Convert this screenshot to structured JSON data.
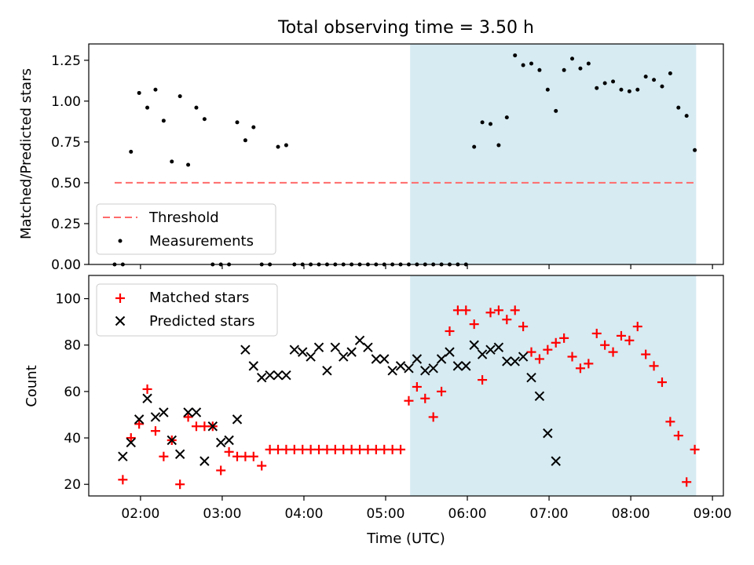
{
  "figure": {
    "title": "Total observing time = 3.50 h",
    "xlabel": "Time (UTC)"
  },
  "colors": {
    "shade": "#add8e6",
    "threshold": "#ff6b6b",
    "matched": "#ff0000",
    "predicted": "#000000",
    "measurement": "#000000"
  },
  "chart_data": [
    {
      "type": "scatter",
      "ylabel": "Matched/Predicted stars",
      "ylim": [
        0,
        1.35
      ],
      "yticks": [
        0.0,
        0.25,
        0.5,
        0.75,
        1.0,
        1.25
      ],
      "ytick_labels": [
        "0.00",
        "0.25",
        "0.50",
        "0.75",
        "1.00",
        "1.25"
      ],
      "xlim": [
        "01:22",
        "09:08"
      ],
      "xticks": [
        "02:00",
        "03:00",
        "04:00",
        "05:00",
        "06:00",
        "07:00",
        "08:00",
        "09:00"
      ],
      "xtick_labels_shown": false,
      "shaded_span": [
        "05:18",
        "08:48"
      ],
      "legend_position": "lower-left",
      "threshold": {
        "name": "Threshold",
        "value": 0.5,
        "x_range": [
          "01:41",
          "08:48"
        ]
      },
      "series": [
        {
          "name": "Measurements",
          "x": [
            "01:41",
            "01:47",
            "01:53",
            "01:59",
            "02:05",
            "02:11",
            "02:17",
            "02:23",
            "02:29",
            "02:35",
            "02:41",
            "02:47",
            "02:53",
            "02:59",
            "03:05",
            "03:11",
            "03:17",
            "03:23",
            "03:29",
            "03:35",
            "03:41",
            "03:47",
            "03:53",
            "03:59",
            "04:05",
            "04:11",
            "04:17",
            "04:23",
            "04:29",
            "04:35",
            "04:41",
            "04:47",
            "04:53",
            "04:59",
            "05:05",
            "05:11",
            "05:17",
            "05:23",
            "05:29",
            "05:35",
            "05:41",
            "05:47",
            "05:53",
            "05:59",
            "06:05",
            "06:11",
            "06:17",
            "06:23",
            "06:29",
            "06:35",
            "06:41",
            "06:47",
            "06:53",
            "06:59",
            "07:05",
            "07:11",
            "07:17",
            "07:23",
            "07:29",
            "07:35",
            "07:41",
            "07:47",
            "07:53",
            "07:59",
            "08:05",
            "08:11",
            "08:17",
            "08:23",
            "08:29",
            "08:35",
            "08:41",
            "08:47"
          ],
          "y": [
            0.0,
            0.0,
            0.69,
            1.05,
            0.96,
            1.07,
            0.88,
            0.63,
            1.03,
            0.61,
            0.96,
            0.89,
            0.0,
            0.0,
            0.0,
            0.87,
            0.76,
            0.84,
            0.0,
            0.0,
            0.72,
            0.73,
            0.0,
            0.0,
            0.0,
            0.0,
            0.0,
            0.0,
            0.0,
            0.0,
            0.0,
            0.0,
            0.0,
            0.0,
            0.0,
            0.0,
            0.0,
            0.0,
            0.0,
            0.0,
            0.0,
            0.0,
            0.0,
            0.0,
            0.72,
            0.87,
            0.86,
            0.73,
            0.9,
            1.28,
            1.22,
            1.23,
            1.19,
            1.07,
            0.94,
            1.19,
            1.26,
            1.2,
            1.23,
            1.08,
            1.11,
            1.12,
            1.07,
            1.06,
            1.07,
            1.15,
            1.13,
            1.09,
            1.17,
            0.96,
            0.91,
            0.7
          ]
        }
      ]
    },
    {
      "type": "scatter",
      "ylabel": "Count",
      "ylim": [
        15,
        110
      ],
      "yticks": [
        20,
        40,
        60,
        80,
        100
      ],
      "ytick_labels": [
        "20",
        "40",
        "60",
        "80",
        "100"
      ],
      "xlim": [
        "01:22",
        "09:08"
      ],
      "xticks": [
        "02:00",
        "03:00",
        "04:00",
        "05:00",
        "06:00",
        "07:00",
        "08:00",
        "09:00"
      ],
      "xtick_labels": [
        "02:00",
        "03:00",
        "04:00",
        "05:00",
        "06:00",
        "07:00",
        "08:00",
        "09:00"
      ],
      "shaded_span": [
        "05:18",
        "08:48"
      ],
      "legend_position": "upper-left",
      "series": [
        {
          "name": "Matched stars",
          "marker": "+",
          "x": [
            "01:47",
            "01:53",
            "01:59",
            "02:05",
            "02:11",
            "02:17",
            "02:23",
            "02:29",
            "02:35",
            "02:41",
            "02:47",
            "02:53",
            "02:59",
            "03:05",
            "03:11",
            "03:17",
            "03:23",
            "03:29",
            "03:35",
            "03:41",
            "03:47",
            "03:53",
            "03:59",
            "04:05",
            "04:11",
            "04:17",
            "04:23",
            "04:29",
            "04:35",
            "04:41",
            "04:47",
            "04:53",
            "04:59",
            "05:05",
            "05:11",
            "05:17",
            "05:23",
            "05:29",
            "05:35",
            "05:41",
            "05:47",
            "05:53",
            "05:59",
            "06:05",
            "06:11",
            "06:17",
            "06:23",
            "06:29",
            "06:35",
            "06:41",
            "06:47",
            "06:53",
            "06:59",
            "07:05",
            "07:11",
            "07:17",
            "07:23",
            "07:29",
            "07:35",
            "07:41",
            "07:47",
            "07:53",
            "07:59",
            "08:05",
            "08:11",
            "08:17",
            "08:23",
            "08:29",
            "08:35",
            "08:41",
            "08:47"
          ],
          "y": [
            22,
            40,
            46,
            61,
            43,
            32,
            39,
            20,
            49,
            45,
            45,
            45,
            26,
            34,
            32,
            32,
            32,
            28,
            35,
            35,
            35,
            35,
            35,
            35,
            35,
            35,
            35,
            35,
            35,
            35,
            35,
            35,
            35,
            35,
            35,
            56,
            62,
            57,
            49,
            60,
            86,
            95,
            95,
            89,
            65,
            94,
            95,
            91,
            95,
            88,
            77,
            74,
            78,
            81,
            83,
            75,
            70,
            72,
            85,
            80,
            77,
            84,
            82,
            88,
            76,
            71,
            64,
            47,
            41,
            21,
            35
          ]
        },
        {
          "name": "Predicted stars",
          "marker": "x",
          "x": [
            "01:47",
            "01:53",
            "01:59",
            "02:05",
            "02:11",
            "02:17",
            "02:23",
            "02:29",
            "02:35",
            "02:41",
            "02:47",
            "02:53",
            "02:59",
            "03:05",
            "03:11",
            "03:17",
            "03:23",
            "03:29",
            "03:35",
            "03:41",
            "03:47",
            "03:53",
            "03:59",
            "04:05",
            "04:11",
            "04:17",
            "04:23",
            "04:29",
            "04:35",
            "04:41",
            "04:47",
            "04:53",
            "04:59",
            "05:05",
            "05:11",
            "05:17",
            "05:23",
            "05:29",
            "05:35",
            "05:41",
            "05:47",
            "05:53",
            "05:59",
            "06:05",
            "06:11",
            "06:17",
            "06:23",
            "06:29",
            "06:35",
            "06:41",
            "06:47",
            "06:53",
            "06:59",
            "07:05",
            "07:11",
            "07:17",
            "07:23",
            "07:29",
            "07:35",
            "07:41",
            "07:47",
            "07:53",
            "07:59",
            "08:05",
            "08:11",
            "08:17",
            "08:23",
            "08:29",
            "08:35",
            "08:41",
            "08:47"
          ],
          "y": [
            32,
            38,
            48,
            57,
            49,
            51,
            39,
            33,
            51,
            51,
            30,
            45,
            38,
            39,
            48,
            78,
            71,
            66,
            67,
            67,
            67,
            78,
            77,
            75,
            79,
            69,
            79,
            75,
            77,
            82,
            79,
            74,
            74,
            69,
            71,
            70,
            74,
            69,
            70,
            74,
            77,
            71,
            71,
            80,
            76,
            78,
            79,
            73,
            73,
            75,
            66,
            58,
            42,
            30,
            null,
            null,
            null,
            null,
            null,
            null,
            null,
            null,
            null,
            null,
            null,
            null,
            null,
            null,
            null,
            null,
            null
          ]
        }
      ]
    }
  ]
}
